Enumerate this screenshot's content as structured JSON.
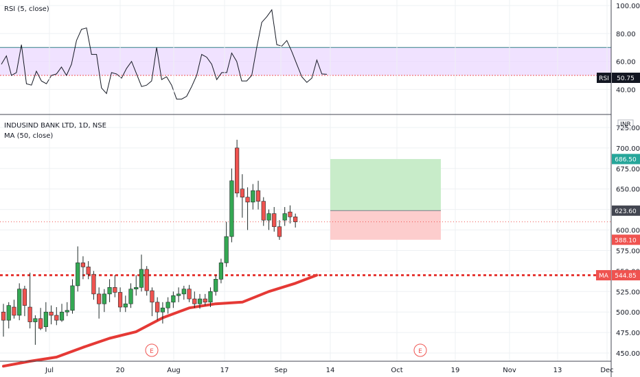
{
  "colors": {
    "up": "#26a69a",
    "down": "#ef5350",
    "ma": "#e53935",
    "rsi_line": "#131722",
    "rsi_band": "#e9d5ff",
    "rsi_upper": "#2f7e86",
    "rsi_lower": "#ef5350",
    "target": "#c8ecc9",
    "stop": "#fdcdcd",
    "grid": "#eef0f3",
    "axis": "#434651"
  },
  "rsi_panel": {
    "title": "RSI (5, close)",
    "ticks": [
      "100.00",
      "80.00",
      "60.00",
      "40.00"
    ],
    "current": "50.75",
    "badge": "RSI"
  },
  "price_panel": {
    "title": "INDUSIND BANK LTD, 1D, NSE",
    "subtitle": "MA (50, close)",
    "currency": "INR",
    "ticks": [
      "725.00",
      "700.00",
      "675.00",
      "650.00",
      "625.00",
      "600.00",
      "575.00",
      "550.00",
      "525.00",
      "500.00",
      "475.00",
      "450.00"
    ],
    "badges": {
      "target": "686.50",
      "entry": "623.60",
      "stop": "588.10",
      "ma_label": "MA",
      "ma_value": "544.85"
    },
    "events": [
      "E",
      "E"
    ]
  },
  "x_axis": [
    "Jul",
    "20",
    "Aug",
    "17",
    "Sep",
    "14",
    "Oct",
    "19",
    "Nov",
    "13",
    "Dec"
  ],
  "chart_data": [
    {
      "type": "line",
      "title": "RSI (5, close)",
      "y_range": [
        22,
        104
      ],
      "bands": {
        "upper": 70,
        "lower": 50
      },
      "y": [
        58,
        64,
        50,
        52,
        72,
        44,
        43,
        53,
        46,
        44,
        50,
        51,
        56,
        50,
        58,
        75,
        83,
        84,
        65,
        65,
        41,
        37,
        52,
        51,
        48,
        55,
        60,
        51,
        42,
        43,
        46,
        70,
        47,
        49,
        43,
        33,
        33,
        35,
        42,
        50,
        65,
        63,
        58,
        47,
        52,
        52,
        66,
        60,
        46,
        46,
        50,
        70,
        88,
        92,
        97,
        72,
        71,
        75,
        67,
        58,
        49,
        45,
        48,
        61,
        51,
        50.75
      ],
      "current": 50.75
    },
    {
      "type": "candlestick",
      "title": "INDUSIND BANK LTD, 1D, NSE",
      "y_range": [
        440,
        740
      ],
      "candles": [
        {
          "o": 500,
          "h": 510,
          "l": 470,
          "c": 490
        },
        {
          "o": 490,
          "h": 512,
          "l": 480,
          "c": 508
        },
        {
          "o": 506,
          "h": 515,
          "l": 492,
          "c": 496
        },
        {
          "o": 496,
          "h": 535,
          "l": 490,
          "c": 528
        },
        {
          "o": 528,
          "h": 532,
          "l": 495,
          "c": 508
        },
        {
          "o": 506,
          "h": 548,
          "l": 480,
          "c": 488
        },
        {
          "o": 488,
          "h": 496,
          "l": 460,
          "c": 492
        },
        {
          "o": 492,
          "h": 505,
          "l": 478,
          "c": 480
        },
        {
          "o": 482,
          "h": 512,
          "l": 476,
          "c": 500
        },
        {
          "o": 500,
          "h": 508,
          "l": 485,
          "c": 496
        },
        {
          "o": 496,
          "h": 506,
          "l": 484,
          "c": 490
        },
        {
          "o": 490,
          "h": 510,
          "l": 488,
          "c": 500
        },
        {
          "o": 500,
          "h": 512,
          "l": 495,
          "c": 502
        },
        {
          "o": 502,
          "h": 540,
          "l": 498,
          "c": 532
        },
        {
          "o": 532,
          "h": 580,
          "l": 525,
          "c": 560
        },
        {
          "o": 560,
          "h": 568,
          "l": 540,
          "c": 555
        },
        {
          "o": 555,
          "h": 562,
          "l": 540,
          "c": 546
        },
        {
          "o": 546,
          "h": 550,
          "l": 515,
          "c": 522
        },
        {
          "o": 522,
          "h": 530,
          "l": 492,
          "c": 510
        },
        {
          "o": 510,
          "h": 528,
          "l": 500,
          "c": 522
        },
        {
          "o": 522,
          "h": 540,
          "l": 512,
          "c": 530
        },
        {
          "o": 530,
          "h": 545,
          "l": 518,
          "c": 524
        },
        {
          "o": 524,
          "h": 530,
          "l": 500,
          "c": 506
        },
        {
          "o": 506,
          "h": 520,
          "l": 500,
          "c": 510
        },
        {
          "o": 510,
          "h": 535,
          "l": 505,
          "c": 528
        },
        {
          "o": 528,
          "h": 545,
          "l": 520,
          "c": 530
        },
        {
          "o": 530,
          "h": 570,
          "l": 525,
          "c": 552
        },
        {
          "o": 552,
          "h": 556,
          "l": 520,
          "c": 526
        },
        {
          "o": 526,
          "h": 530,
          "l": 495,
          "c": 512
        },
        {
          "o": 512,
          "h": 518,
          "l": 490,
          "c": 500
        },
        {
          "o": 500,
          "h": 512,
          "l": 486,
          "c": 505
        },
        {
          "o": 505,
          "h": 518,
          "l": 498,
          "c": 512
        },
        {
          "o": 512,
          "h": 525,
          "l": 505,
          "c": 520
        },
        {
          "o": 520,
          "h": 530,
          "l": 512,
          "c": 522
        },
        {
          "o": 522,
          "h": 532,
          "l": 515,
          "c": 528
        },
        {
          "o": 528,
          "h": 533,
          "l": 512,
          "c": 516
        },
        {
          "o": 516,
          "h": 525,
          "l": 505,
          "c": 510
        },
        {
          "o": 510,
          "h": 522,
          "l": 504,
          "c": 516
        },
        {
          "o": 516,
          "h": 522,
          "l": 508,
          "c": 512
        },
        {
          "o": 512,
          "h": 530,
          "l": 506,
          "c": 525
        },
        {
          "o": 525,
          "h": 545,
          "l": 520,
          "c": 540
        },
        {
          "o": 540,
          "h": 565,
          "l": 535,
          "c": 560
        },
        {
          "o": 560,
          "h": 610,
          "l": 555,
          "c": 592
        },
        {
          "o": 592,
          "h": 675,
          "l": 585,
          "c": 660
        },
        {
          "o": 700,
          "h": 710,
          "l": 640,
          "c": 645
        },
        {
          "o": 650,
          "h": 668,
          "l": 615,
          "c": 640
        },
        {
          "o": 640,
          "h": 652,
          "l": 600,
          "c": 634
        },
        {
          "o": 634,
          "h": 656,
          "l": 625,
          "c": 648
        },
        {
          "o": 648,
          "h": 660,
          "l": 625,
          "c": 635
        },
        {
          "o": 635,
          "h": 640,
          "l": 605,
          "c": 612
        },
        {
          "o": 612,
          "h": 625,
          "l": 600,
          "c": 620
        },
        {
          "o": 620,
          "h": 628,
          "l": 598,
          "c": 604
        },
        {
          "o": 604,
          "h": 612,
          "l": 588,
          "c": 592
        },
        {
          "o": 612,
          "h": 628,
          "l": 605,
          "c": 620
        },
        {
          "o": 622,
          "h": 630,
          "l": 608,
          "c": 616
        },
        {
          "o": 616,
          "h": 620,
          "l": 603,
          "c": 610
        }
      ],
      "ma": [
        {
          "i": 0,
          "v": 434
        },
        {
          "i": 5,
          "v": 440
        },
        {
          "i": 10,
          "v": 445
        },
        {
          "i": 15,
          "v": 457
        },
        {
          "i": 20,
          "v": 468
        },
        {
          "i": 25,
          "v": 476
        },
        {
          "i": 30,
          "v": 493
        },
        {
          "i": 35,
          "v": 505
        },
        {
          "i": 40,
          "v": 510
        },
        {
          "i": 45,
          "v": 512
        },
        {
          "i": 50,
          "v": 525
        },
        {
          "i": 55,
          "v": 535
        },
        {
          "i": 59,
          "v": 544.85
        }
      ],
      "support_level": 544.85,
      "position": {
        "target": 686.5,
        "entry": 623.6,
        "stop": 588.1
      }
    }
  ]
}
